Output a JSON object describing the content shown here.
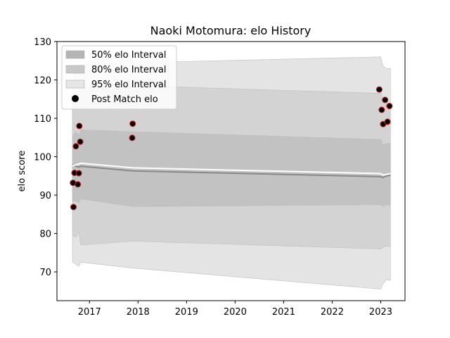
{
  "chart_data": {
    "type": "line",
    "title": "Naoki Motomura: elo History",
    "xlabel": "",
    "ylabel": "elo score",
    "xlim": [
      2016.33,
      2023.5
    ],
    "ylim": [
      62.5,
      130
    ],
    "x_ticks": [
      2017,
      2018,
      2019,
      2020,
      2021,
      2022,
      2023
    ],
    "y_ticks": [
      70,
      80,
      90,
      100,
      110,
      120,
      130
    ],
    "grid": false,
    "legend": {
      "placement": "top-left",
      "entries": [
        {
          "label": "50% elo Interval",
          "color": "#b4b4b4",
          "marker": "patch"
        },
        {
          "label": "80% elo Interval",
          "color": "#c8c8c8",
          "marker": "patch"
        },
        {
          "label": "95% elo Interval",
          "color": "#e6e6e6",
          "marker": "patch"
        },
        {
          "label": "Post Match elo",
          "color": "#000000",
          "marker": "circle"
        }
      ]
    },
    "bands": [
      {
        "name": "95% elo Interval",
        "color": "#e4e4e4",
        "x": [
          2016.65,
          2016.72,
          2016.78,
          2016.82,
          2017.9,
          2023.0,
          2023.05,
          2023.12,
          2023.2
        ],
        "upper": [
          119.5,
          124.0,
          123.5,
          124.0,
          124.5,
          126.0,
          123.5,
          123.0,
          123.0
        ],
        "lower": [
          72.5,
          72.0,
          71.5,
          72.5,
          71.0,
          65.5,
          67.0,
          68.0,
          67.8
        ]
      },
      {
        "name": "80% elo Interval",
        "color": "#d3d3d3",
        "x": [
          2016.65,
          2016.72,
          2016.78,
          2016.82,
          2017.9,
          2023.0,
          2023.05,
          2023.12,
          2023.2
        ],
        "upper": [
          113.0,
          117.0,
          116.5,
          118.0,
          118.5,
          116.5,
          115.0,
          114.0,
          114.0
        ],
        "lower": [
          79.5,
          79.0,
          80.5,
          77.0,
          78.0,
          76.0,
          76.5,
          76.8,
          76.5
        ]
      },
      {
        "name": "50% elo Interval",
        "color": "#c2c2c2",
        "x": [
          2016.65,
          2016.72,
          2016.78,
          2016.82,
          2017.9,
          2023.0,
          2023.05,
          2023.12,
          2023.2
        ],
        "upper": [
          105.5,
          106.5,
          105.5,
          107.0,
          106.5,
          104.5,
          103.0,
          103.5,
          103.5
        ],
        "lower": [
          88.5,
          88.5,
          88.0,
          89.0,
          87.0,
          87.5,
          87.0,
          87.5,
          87.3
        ]
      }
    ],
    "series": [
      {
        "color": "#888888",
        "style": "median",
        "x": [
          2016.65,
          2016.72,
          2016.78,
          2016.82,
          2017.9,
          2023.0,
          2023.05,
          2023.12,
          2023.2
        ],
        "y": [
          98.0,
          97.5,
          97.3,
          97.5,
          96.3,
          94.8,
          94.6,
          95.0,
          95.2
        ]
      },
      {
        "color": "#ffffff",
        "style": "mean",
        "x": [
          2016.65,
          2016.72,
          2016.78,
          2016.82,
          2017.9,
          2023.0,
          2023.05,
          2023.12,
          2023.2
        ],
        "y": [
          97.6,
          97.9,
          98.1,
          98.3,
          97.1,
          95.6,
          95.2,
          95.4,
          95.6
        ]
      }
    ],
    "points": [
      {
        "x": 2016.66,
        "y": 93.2
      },
      {
        "x": 2016.67,
        "y": 86.9
      },
      {
        "x": 2016.69,
        "y": 95.8
      },
      {
        "x": 2016.72,
        "y": 102.7
      },
      {
        "x": 2016.76,
        "y": 92.8
      },
      {
        "x": 2016.78,
        "y": 95.7
      },
      {
        "x": 2016.79,
        "y": 108.0
      },
      {
        "x": 2016.81,
        "y": 103.9
      },
      {
        "x": 2017.88,
        "y": 104.9
      },
      {
        "x": 2017.89,
        "y": 108.6
      },
      {
        "x": 2022.97,
        "y": 117.5
      },
      {
        "x": 2023.02,
        "y": 112.2
      },
      {
        "x": 2023.05,
        "y": 108.5
      },
      {
        "x": 2023.09,
        "y": 114.8
      },
      {
        "x": 2023.14,
        "y": 109.1
      },
      {
        "x": 2023.18,
        "y": 113.2
      }
    ]
  }
}
